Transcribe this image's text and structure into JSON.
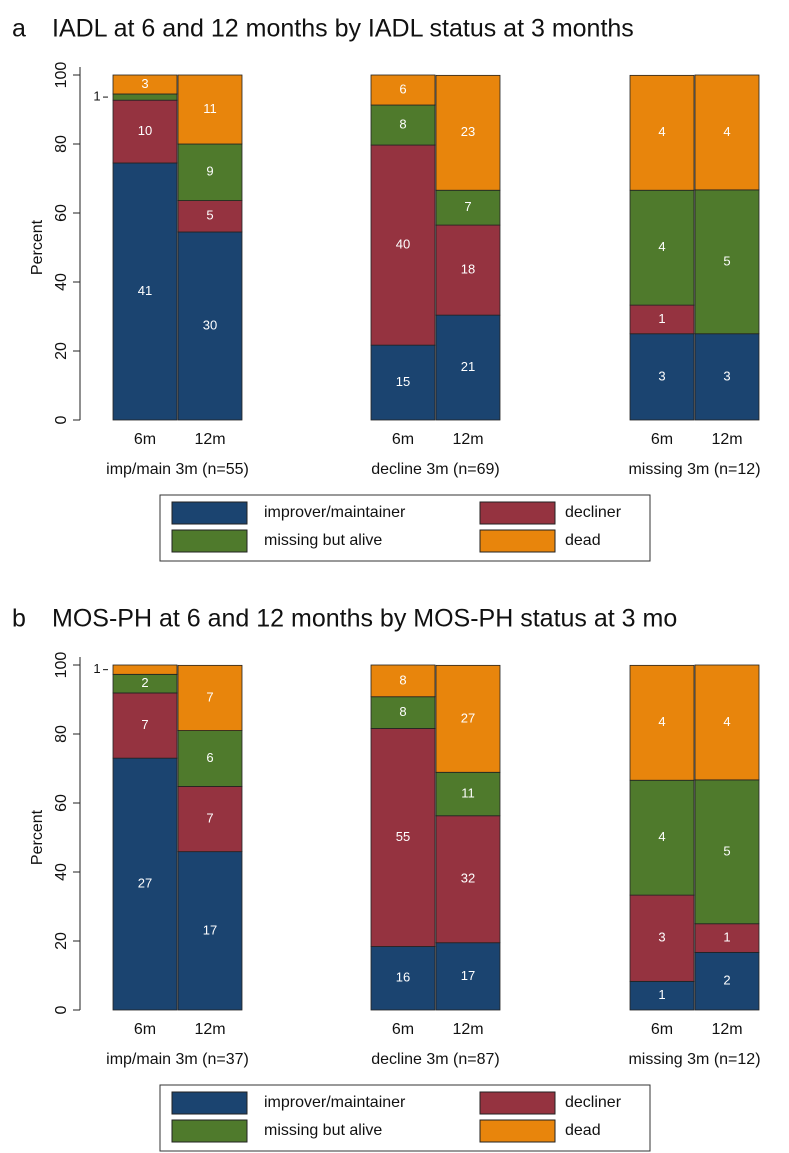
{
  "chart_data": [
    {
      "type": "bar",
      "stacked": true,
      "panel": "a",
      "title": "IADL at 6 and 12 months by IADL status at 3 months",
      "ylabel": "Percent",
      "categories": [
        "6m",
        "12m",
        "6m",
        "12m",
        "6m",
        "12m"
      ],
      "groups": [
        "imp/main 3m (n=55)",
        "decline 3m (n=69)",
        "missing 3m (n=12)"
      ],
      "ylim": [
        0,
        100
      ],
      "yticks": [
        0,
        20,
        40,
        60,
        80,
        100
      ],
      "series": [
        {
          "name": "improver/maintainer",
          "color": "#1b4470",
          "values": [
            74.5,
            54.5,
            21.7,
            30.4,
            25,
            25
          ],
          "counts": [
            41,
            30,
            15,
            21,
            3,
            3
          ]
        },
        {
          "name": "decliner",
          "color": "#953340",
          "values": [
            18.2,
            9.1,
            58.0,
            26.1,
            8.3,
            0
          ],
          "counts": [
            10,
            5,
            40,
            18,
            1,
            null
          ]
        },
        {
          "name": "missing but alive",
          "color": "#4f7a2c",
          "values": [
            1.8,
            16.4,
            11.6,
            10.1,
            33.3,
            41.7
          ],
          "counts": [
            1,
            9,
            8,
            7,
            4,
            5
          ]
        },
        {
          "name": "dead",
          "color": "#e8850c",
          "values": [
            5.5,
            20.0,
            8.7,
            33.3,
            33.3,
            33.3
          ],
          "counts": [
            3,
            11,
            6,
            23,
            4,
            4
          ]
        }
      ]
    },
    {
      "type": "bar",
      "stacked": true,
      "panel": "b",
      "title": "MOS-PH at 6 and 12 months by MOS-PH status at 3 mo",
      "ylabel": "Percent",
      "categories": [
        "6m",
        "12m",
        "6m",
        "12m",
        "6m",
        "12m"
      ],
      "groups": [
        "imp/main 3m (n=37)",
        "decline 3m (n=87)",
        "missing 3m (n=12)"
      ],
      "ylim": [
        0,
        100
      ],
      "yticks": [
        0,
        20,
        40,
        60,
        80,
        100
      ],
      "series": [
        {
          "name": "improver/maintainer",
          "color": "#1b4470",
          "values": [
            73.0,
            45.9,
            18.4,
            19.5,
            8.3,
            16.7
          ],
          "counts": [
            27,
            17,
            16,
            17,
            1,
            2
          ]
        },
        {
          "name": "decliner",
          "color": "#953340",
          "values": [
            18.9,
            18.9,
            63.2,
            36.8,
            25,
            8.3
          ],
          "counts": [
            7,
            7,
            55,
            32,
            3,
            1
          ]
        },
        {
          "name": "missing but alive",
          "color": "#4f7a2c",
          "values": [
            5.4,
            16.2,
            9.2,
            12.6,
            33.3,
            41.7
          ],
          "counts": [
            2,
            6,
            8,
            11,
            4,
            5
          ]
        },
        {
          "name": "dead",
          "color": "#e8850c",
          "values": [
            2.7,
            18.9,
            9.2,
            31.0,
            33.3,
            33.3
          ],
          "counts": [
            1,
            7,
            8,
            27,
            4,
            4
          ]
        }
      ]
    }
  ]
}
